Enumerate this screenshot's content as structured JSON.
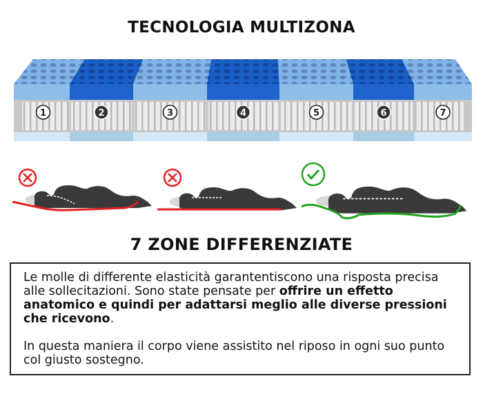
{
  "title": "TECNOLOGIA MULTIZONA",
  "subtitle": "7 ZONE DIFFERENZIATE",
  "zones": [
    "1",
    "2",
    "3",
    "4",
    "5",
    "6",
    "7"
  ],
  "colors": {
    "foam_soft": "#7fb2e6",
    "foam_firm": "#1a5fc8",
    "wrong": "#e41e1e",
    "right": "#22a322",
    "body": "#3a3a3a"
  },
  "postures": [
    {
      "status": "wrong",
      "icon": "x-circle-icon"
    },
    {
      "status": "wrong",
      "icon": "x-circle-icon"
    },
    {
      "status": "correct",
      "icon": "check-circle-icon"
    }
  ],
  "description": {
    "p1_plain": "Le molle di differente elasticità garantentiscono una risposta precisa alle sollecitazioni. Sono state pensate per ",
    "p1_bold": "offrire un effetto anatomico e quindi per adattarsi meglio alle diverse pressioni che ricevono",
    "p1_end": ".",
    "p2": "In questa maniera il corpo viene assistito nel riposo in ogni suo punto col giusto sostegno."
  }
}
